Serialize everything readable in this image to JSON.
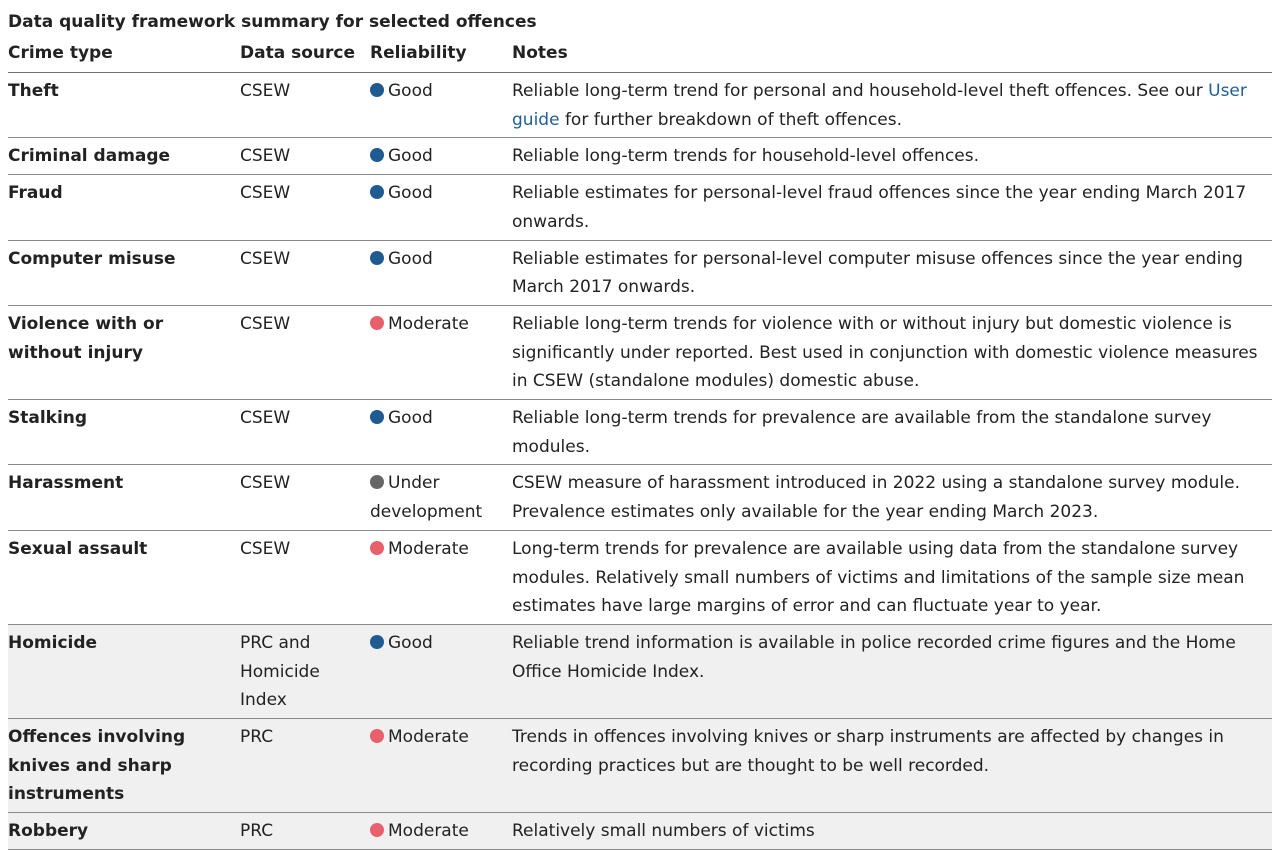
{
  "caption": "Data quality framework summary for selected offences",
  "headers": {
    "crime_type": "Crime type",
    "data_source": "Data source",
    "reliability": "Reliability",
    "notes": "Notes"
  },
  "colors": {
    "good": "#1f5a91",
    "moderate": "#e8606b",
    "under_development": "#666666",
    "link": "#206095"
  },
  "rows": [
    {
      "crime": "Theft",
      "source": "CSEW",
      "reliability": "Good",
      "status": "good",
      "notes_before": "Reliable long-term trend for personal and household-level theft offences. See our ",
      "notes_link": "User guide",
      "notes_after": " for further breakdown of theft offences."
    },
    {
      "crime": "Criminal damage",
      "source": "CSEW",
      "reliability": "Good",
      "status": "good",
      "notes": "Reliable long-term trends for household-level offences."
    },
    {
      "crime": "Fraud",
      "source": "CSEW",
      "reliability": "Good",
      "status": "good",
      "notes": "Reliable estimates for personal-level fraud offences since the year ending March 2017 onwards."
    },
    {
      "crime": "Computer misuse",
      "source": "CSEW",
      "reliability": "Good",
      "status": "good",
      "notes": "Reliable estimates for personal-level computer misuse offences since the year ending March 2017 onwards."
    },
    {
      "crime": "Violence with or without injury",
      "source": "CSEW",
      "reliability": "Moderate",
      "status": "moderate",
      "notes": "Reliable long-term trends for violence with or without injury but domestic violence is significantly under reported. Best used in conjunction with domestic violence measures in CSEW (standalone modules) domestic abuse."
    },
    {
      "crime": "Stalking",
      "source": "CSEW",
      "reliability": "Good",
      "status": "good",
      "notes": "Reliable long-term trends for prevalence are available from the standalone survey modules."
    },
    {
      "crime": "Harassment",
      "source": "CSEW",
      "reliability": "Under development",
      "status": "under_development",
      "notes": "CSEW measure of harassment introduced in 2022 using a standalone survey module. Prevalence estimates only available for the year ending March 2023."
    },
    {
      "crime": "Sexual assault",
      "source": "CSEW",
      "reliability": "Moderate",
      "status": "moderate",
      "notes": "Long-term trends for prevalence are available using data from the standalone survey modules. Relatively small numbers of victims and limitations of the sample size mean estimates have large margins of error and can fluctuate year to year."
    },
    {
      "crime": "Homicide",
      "source": "PRC and Homicide Index",
      "reliability": "Good",
      "status": "good",
      "notes": "Reliable trend information is available in police recorded crime figures and the Home Office Homicide Index."
    },
    {
      "crime": "Offences involving knives and sharp instruments",
      "source": "PRC",
      "reliability": "Moderate",
      "status": "moderate",
      "notes": "Trends in offences involving knives or sharp instruments are affected by changes in recording practices but are thought to be well recorded."
    },
    {
      "crime": "Robbery",
      "source": "PRC",
      "reliability": "Moderate",
      "status": "moderate",
      "notes": "Relatively small numbers of victims"
    }
  ]
}
